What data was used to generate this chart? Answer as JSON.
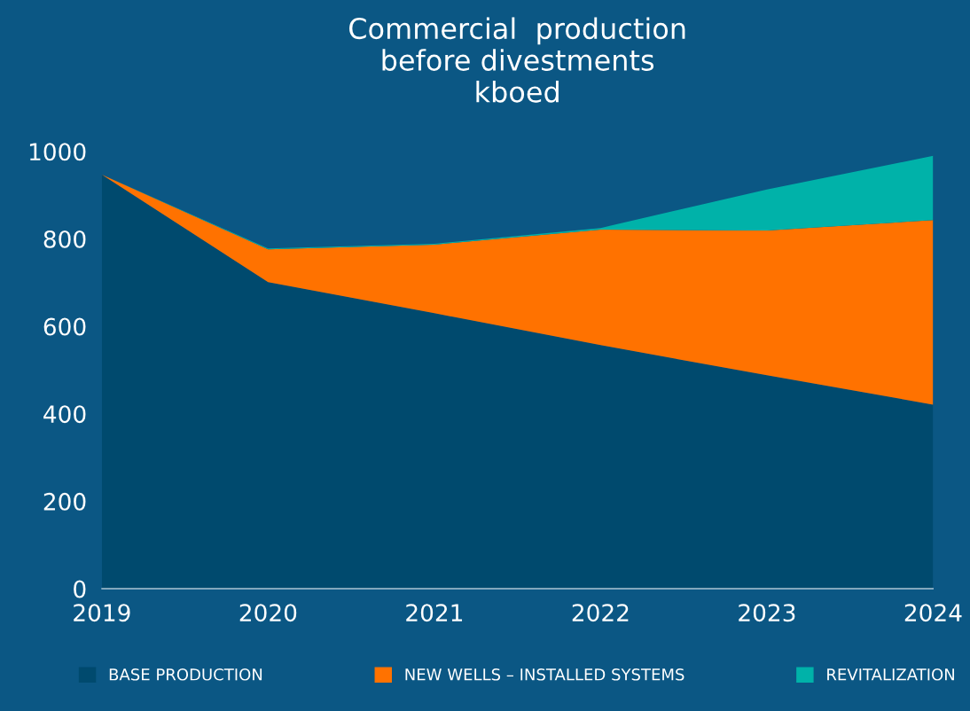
{
  "chart_data": {
    "type": "area",
    "stacked": true,
    "title": "Commercial  production\nbefore divestments\nkboed",
    "x": [
      2019,
      2020,
      2021,
      2022,
      2023,
      2024
    ],
    "series": [
      {
        "name": "BASE PRODUCTION",
        "color": "#004a6e",
        "values": [
          947,
          701,
          630,
          557,
          488,
          421
        ]
      },
      {
        "name": "NEW WELLS – INSTALLED SYSTEMS",
        "color": "#ff7200",
        "values": [
          0,
          75,
          157,
          264,
          331,
          422
        ]
      },
      {
        "name": "REVITALIZATION",
        "color": "#00b2a9",
        "values": [
          0,
          2,
          2,
          4,
          94,
          147
        ]
      }
    ],
    "xlim": [
      2019,
      2024
    ],
    "xticks": [
      2019,
      2020,
      2021,
      2022,
      2023,
      2024
    ],
    "ylim": [
      0,
      1000
    ],
    "yticks": [
      0,
      200,
      400,
      600,
      800,
      1000
    ],
    "grid": false,
    "legend": "bottom"
  }
}
